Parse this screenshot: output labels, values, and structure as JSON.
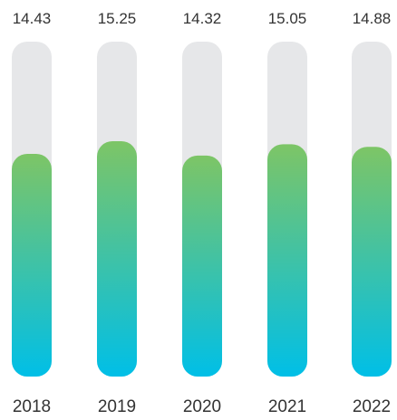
{
  "chart_data": {
    "type": "bar",
    "title": "",
    "xlabel": "",
    "ylabel": "",
    "categories": [
      "2018",
      "2019",
      "2020",
      "2021",
      "2022"
    ],
    "values": [
      14.43,
      15.25,
      14.32,
      15.05,
      14.88
    ],
    "value_labels": [
      "14.43",
      "15.25",
      "14.32",
      "15.05",
      "14.88"
    ],
    "ylim": [
      0,
      21.7
    ],
    "grid": false,
    "legend": "none",
    "colors": {
      "track": "#e6e7e9",
      "gradient_top": "#7dc566",
      "gradient_bottom": "#00bfe7",
      "text": "#333333"
    }
  }
}
